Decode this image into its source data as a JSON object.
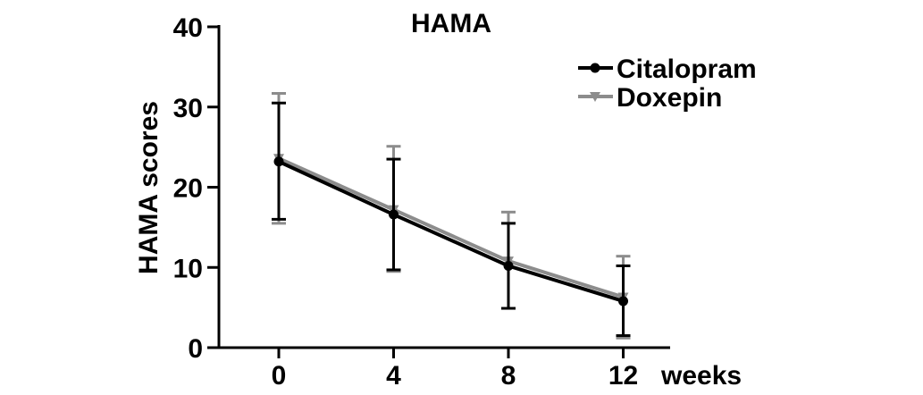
{
  "chart_data": {
    "type": "line",
    "title": "HAMA",
    "xlabel": "weeks",
    "ylabel": "HAMA scores",
    "x": [
      0,
      4,
      8,
      12
    ],
    "x_ticks": [
      "0",
      "4",
      "8",
      "12"
    ],
    "y_ticks": [
      "0",
      "10",
      "20",
      "30",
      "40"
    ],
    "ylim": [
      0,
      40
    ],
    "grid": false,
    "legend": "top-right",
    "series": [
      {
        "name": "Citalopram",
        "marker": "circle",
        "color": "#000000",
        "values": [
          23.2,
          16.6,
          10.2,
          5.8
        ],
        "error_upper": [
          30.5,
          23.5,
          15.5,
          10.2
        ],
        "error_lower": [
          16.0,
          9.7,
          4.9,
          1.5
        ]
      },
      {
        "name": "Doxepin",
        "marker": "triangle-down",
        "color": "#8c8c8c",
        "values": [
          23.6,
          17.2,
          10.8,
          6.3
        ],
        "error_upper": [
          31.7,
          25.1,
          16.9,
          11.4
        ],
        "error_lower": [
          15.5,
          9.5,
          4.9,
          1.2
        ]
      }
    ]
  }
}
